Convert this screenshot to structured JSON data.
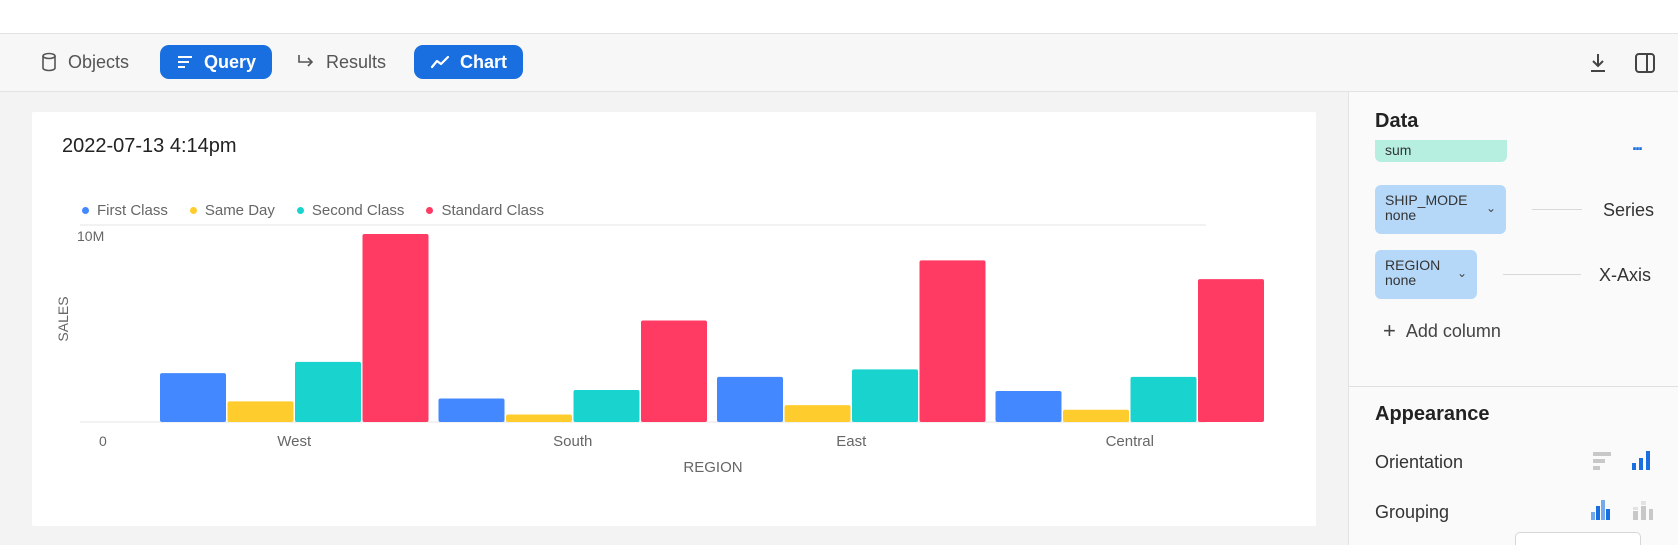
{
  "toolbar": {
    "tabs": [
      {
        "label": "Objects",
        "icon": "database-icon",
        "active": false
      },
      {
        "label": "Query",
        "icon": "lines-icon",
        "active": true
      },
      {
        "label": "Results",
        "icon": "arrow-turn-icon",
        "active": false
      },
      {
        "label": "Chart",
        "icon": "line-chart-icon",
        "active": true
      }
    ],
    "right_icons": [
      "download-icon",
      "split-panel-icon"
    ]
  },
  "chart_card": {
    "title": "2022-07-13 4:14pm"
  },
  "chart_data": {
    "type": "bar",
    "title": "2022-07-13 4:14pm",
    "xlabel": "REGION",
    "ylabel": "SALES",
    "categories": [
      "West",
      "South",
      "East",
      "Central"
    ],
    "y_ticks": [
      "0",
      "10M"
    ],
    "ylim": [
      0,
      10000000
    ],
    "legend_position": "top-left",
    "series": [
      {
        "name": "First Class",
        "color": "#4488ff",
        "values": [
          2600000,
          1250000,
          2400000,
          1650000
        ]
      },
      {
        "name": "Same Day",
        "color": "#ffcc2e",
        "values": [
          1100000,
          400000,
          900000,
          650000
        ]
      },
      {
        "name": "Second Class",
        "color": "#19d3cf",
        "values": [
          3200000,
          1700000,
          2800000,
          2400000
        ]
      },
      {
        "name": "Standard Class",
        "color": "#ff3a63",
        "values": [
          10000000,
          5400000,
          8600000,
          7600000
        ]
      }
    ]
  },
  "side": {
    "data_title": "Data",
    "sum_pill": "sum",
    "more_label": "...",
    "series_pill": {
      "name": "SHIP_MODE",
      "sub": "none",
      "chevron": "⌄"
    },
    "series_role": "Series",
    "xaxis_pill": {
      "name": "REGION",
      "sub": "none",
      "chevron": "⌄"
    },
    "xaxis_role": "X-Axis",
    "add_column": "Add column",
    "add_icon": "+",
    "appearance_title": "Appearance",
    "orientation_label": "Orientation",
    "grouping_label": "Grouping"
  },
  "colors": {
    "accent": "#1a6fe0",
    "green_pill": "#b6eedf",
    "blue_pill": "#b5d8f8"
  }
}
